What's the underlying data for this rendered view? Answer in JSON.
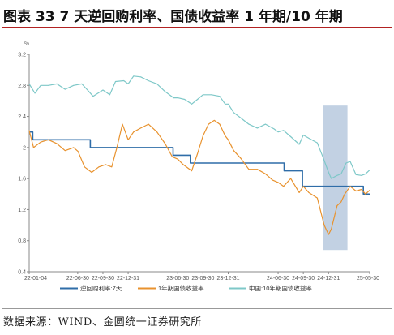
{
  "header": {
    "title": "图表 33 7 天逆回购利率、国债收益率 1 年期/10 年期"
  },
  "footer": {
    "source": "数据来源：WIND、金圆统一证券研究所"
  },
  "colors": {
    "repo": "#2f6da8",
    "y1": "#e8922e",
    "y10": "#7ec8c8",
    "band": "#b3c5dc",
    "axis": "#888888",
    "title_rule": "#b22222"
  },
  "chart_data": {
    "type": "line",
    "unit_label": "%",
    "ylim": [
      0.4,
      3.2
    ],
    "yticks": [
      "0.4",
      "0.8",
      "1.2",
      "1.6",
      "2",
      "2.4",
      "2.8",
      "3.2"
    ],
    "xlim": [
      "2022-01-04",
      "2025-05-30"
    ],
    "xticks": [
      "22-01-04",
      "22-06-30",
      "22-09-30",
      "22-12-31",
      "23-06-30",
      "23-09-30",
      "23-12-31",
      "24-06-30",
      "24-09-30",
      "24-12-31",
      "25-05-30"
    ],
    "x_tick_dates": [
      "2022-01-04",
      "2022-06-30",
      "2022-09-30",
      "2022-12-31",
      "2023-06-30",
      "2023-09-30",
      "2023-12-31",
      "2024-06-30",
      "2024-09-30",
      "2024-12-31",
      "2025-05-30"
    ],
    "legend_position": "bottom",
    "highlight_band": {
      "start": "2024-12-10",
      "end": "2025-03-10"
    },
    "series": [
      {
        "name": "逆回购利率:7天",
        "step": true,
        "points": [
          [
            "2022-01-04",
            2.2
          ],
          [
            "2022-01-17",
            2.1
          ],
          [
            "2022-08-15",
            2.0
          ],
          [
            "2023-06-13",
            1.9
          ],
          [
            "2023-08-15",
            1.8
          ],
          [
            "2024-07-22",
            1.7
          ],
          [
            "2024-09-27",
            1.5
          ],
          [
            "2025-05-07",
            1.4
          ],
          [
            "2025-05-30",
            1.4
          ]
        ]
      },
      {
        "name": "1年期国债收益率",
        "points": [
          [
            "2022-01-04",
            2.22
          ],
          [
            "2022-01-20",
            2.0
          ],
          [
            "2022-02-15",
            2.07
          ],
          [
            "2022-03-15",
            2.1
          ],
          [
            "2022-04-15",
            2.05
          ],
          [
            "2022-05-15",
            1.96
          ],
          [
            "2022-06-15",
            2.0
          ],
          [
            "2022-07-01",
            1.95
          ],
          [
            "2022-07-25",
            1.75
          ],
          [
            "2022-08-20",
            1.68
          ],
          [
            "2022-09-15",
            1.75
          ],
          [
            "2022-10-10",
            1.78
          ],
          [
            "2022-11-01",
            1.75
          ],
          [
            "2022-11-20",
            2.0
          ],
          [
            "2022-12-10",
            2.3
          ],
          [
            "2022-12-31",
            2.1
          ],
          [
            "2023-01-20",
            2.2
          ],
          [
            "2023-02-15",
            2.25
          ],
          [
            "2023-03-15",
            2.3
          ],
          [
            "2023-04-15",
            2.2
          ],
          [
            "2023-05-15",
            2.05
          ],
          [
            "2023-06-10",
            1.88
          ],
          [
            "2023-06-30",
            1.85
          ],
          [
            "2023-07-20",
            1.78
          ],
          [
            "2023-08-20",
            1.7
          ],
          [
            "2023-09-10",
            1.92
          ],
          [
            "2023-09-30",
            2.15
          ],
          [
            "2023-10-20",
            2.3
          ],
          [
            "2023-11-10",
            2.35
          ],
          [
            "2023-11-30",
            2.3
          ],
          [
            "2023-12-20",
            2.15
          ],
          [
            "2023-12-31",
            2.1
          ],
          [
            "2024-01-20",
            1.96
          ],
          [
            "2024-02-15",
            1.86
          ],
          [
            "2024-03-15",
            1.72
          ],
          [
            "2024-04-15",
            1.72
          ],
          [
            "2024-05-15",
            1.66
          ],
          [
            "2024-06-10",
            1.58
          ],
          [
            "2024-06-30",
            1.55
          ],
          [
            "2024-07-20",
            1.5
          ],
          [
            "2024-08-15",
            1.6
          ],
          [
            "2024-09-15",
            1.42
          ],
          [
            "2024-09-30",
            1.5
          ],
          [
            "2024-10-20",
            1.42
          ],
          [
            "2024-11-20",
            1.35
          ],
          [
            "2024-12-15",
            1.0
          ],
          [
            "2024-12-31",
            0.88
          ],
          [
            "2025-01-10",
            0.95
          ],
          [
            "2025-01-31",
            1.25
          ],
          [
            "2025-02-15",
            1.3
          ],
          [
            "2025-02-28",
            1.4
          ],
          [
            "2025-03-20",
            1.5
          ],
          [
            "2025-04-10",
            1.44
          ],
          [
            "2025-04-30",
            1.46
          ],
          [
            "2025-05-15",
            1.4
          ],
          [
            "2025-05-30",
            1.45
          ]
        ]
      },
      {
        "name": "中国:10年期国债收益率",
        "points": [
          [
            "2022-01-04",
            2.82
          ],
          [
            "2022-01-25",
            2.7
          ],
          [
            "2022-02-15",
            2.8
          ],
          [
            "2022-03-15",
            2.8
          ],
          [
            "2022-04-15",
            2.82
          ],
          [
            "2022-05-15",
            2.75
          ],
          [
            "2022-06-15",
            2.8
          ],
          [
            "2022-07-15",
            2.82
          ],
          [
            "2022-08-10",
            2.72
          ],
          [
            "2022-08-25",
            2.66
          ],
          [
            "2022-09-30",
            2.74
          ],
          [
            "2022-10-25",
            2.68
          ],
          [
            "2022-11-15",
            2.85
          ],
          [
            "2022-12-15",
            2.86
          ],
          [
            "2022-12-31",
            2.82
          ],
          [
            "2023-01-20",
            2.92
          ],
          [
            "2023-02-15",
            2.91
          ],
          [
            "2023-03-15",
            2.86
          ],
          [
            "2023-04-15",
            2.82
          ],
          [
            "2023-05-15",
            2.72
          ],
          [
            "2023-06-15",
            2.64
          ],
          [
            "2023-06-30",
            2.64
          ],
          [
            "2023-07-25",
            2.62
          ],
          [
            "2023-08-20",
            2.56
          ],
          [
            "2023-09-10",
            2.62
          ],
          [
            "2023-09-30",
            2.68
          ],
          [
            "2023-10-31",
            2.68
          ],
          [
            "2023-11-30",
            2.66
          ],
          [
            "2023-12-20",
            2.56
          ],
          [
            "2023-12-31",
            2.56
          ],
          [
            "2024-01-20",
            2.45
          ],
          [
            "2024-02-15",
            2.38
          ],
          [
            "2024-03-15",
            2.3
          ],
          [
            "2024-04-15",
            2.25
          ],
          [
            "2024-05-15",
            2.3
          ],
          [
            "2024-06-15",
            2.24
          ],
          [
            "2024-06-30",
            2.2
          ],
          [
            "2024-07-20",
            2.22
          ],
          [
            "2024-08-15",
            2.14
          ],
          [
            "2024-09-15",
            2.04
          ],
          [
            "2024-09-30",
            2.16
          ],
          [
            "2024-10-20",
            2.12
          ],
          [
            "2024-11-20",
            2.06
          ],
          [
            "2024-12-10",
            1.88
          ],
          [
            "2024-12-31",
            1.68
          ],
          [
            "2025-01-10",
            1.6
          ],
          [
            "2025-01-31",
            1.64
          ],
          [
            "2025-02-15",
            1.66
          ],
          [
            "2025-03-05",
            1.8
          ],
          [
            "2025-03-20",
            1.82
          ],
          [
            "2025-04-10",
            1.65
          ],
          [
            "2025-04-30",
            1.64
          ],
          [
            "2025-05-15",
            1.66
          ],
          [
            "2025-05-30",
            1.71
          ]
        ]
      }
    ]
  }
}
